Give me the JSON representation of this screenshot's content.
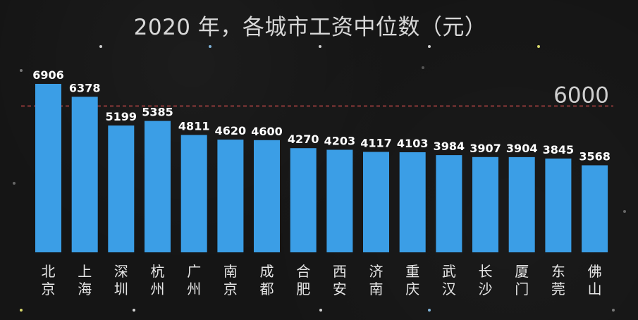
{
  "chart_data": {
    "type": "bar",
    "title": "2020 年，各城市工资中位数（元）",
    "categories": [
      "北京",
      "上海",
      "深圳",
      "杭州",
      "广州",
      "南京",
      "成都",
      "合肥",
      "西安",
      "济南",
      "重庆",
      "武汉",
      "长沙",
      "厦门",
      "东莞",
      "佛山"
    ],
    "values": [
      6906,
      6378,
      5199,
      5385,
      4811,
      4620,
      4600,
      4270,
      4203,
      4117,
      4103,
      3984,
      3907,
      3904,
      3845,
      3568
    ],
    "ylim": [
      0,
      7000
    ],
    "reference_line": {
      "value": 6000,
      "label": "6000"
    },
    "grid": false,
    "colors": {
      "bar": "#3b9ee6",
      "reference_line": "#e05050",
      "background": "#151515"
    }
  }
}
